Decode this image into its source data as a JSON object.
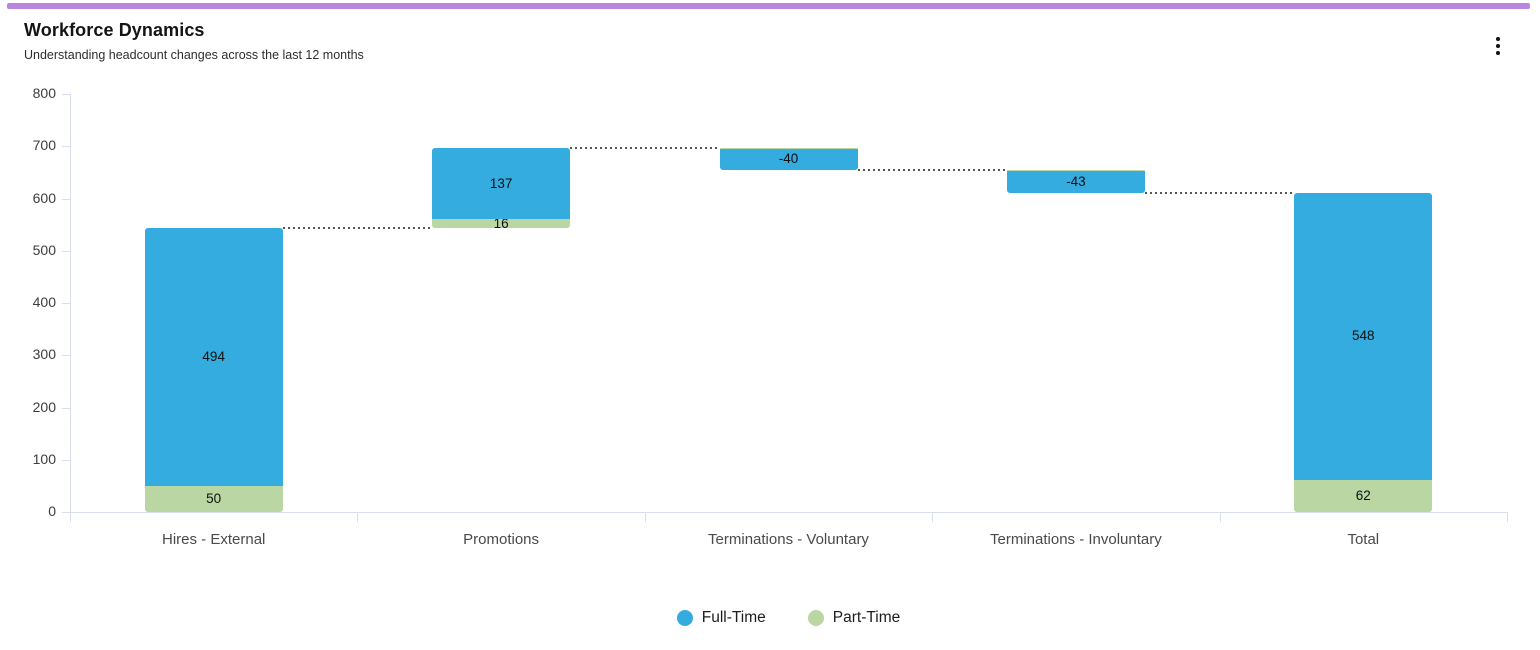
{
  "accent_bar": {
    "color": "#BB86DF"
  },
  "menu": {
    "icon": "kebab-menu-icon"
  },
  "chart_data": {
    "type": "bar",
    "subtype": "stacked-waterfall",
    "title": "Workforce Dynamics",
    "subtitle": "Understanding headcount changes across the last 12 months",
    "categories": [
      "Hires - External",
      "Promotions",
      "Terminations - Voluntary",
      "Terminations - Involuntary",
      "Total"
    ],
    "series": [
      {
        "name": "Full-Time",
        "color": "#35ACDF",
        "values": [
          494,
          137,
          -40,
          -43,
          548
        ]
      },
      {
        "name": "Part-Time",
        "color": "#B9D6A3",
        "values": [
          50,
          16,
          -2,
          -2,
          62
        ]
      }
    ],
    "stack_order": [
      "Part-Time",
      "Full-Time"
    ],
    "total_indices": [
      4
    ],
    "label_min_abs": 10,
    "visible_bar_labels": [
      "494",
      "50",
      "137",
      "16",
      "-40",
      "-43",
      "548",
      "62"
    ],
    "ylim": [
      0,
      800
    ],
    "yticks": [
      0,
      100,
      200,
      300,
      400,
      500,
      600,
      700,
      800
    ],
    "grid": false,
    "legend_position": "bottom",
    "connector_style": "dotted",
    "axis_color": "#D9DEEF",
    "connector_color": "#555555"
  }
}
